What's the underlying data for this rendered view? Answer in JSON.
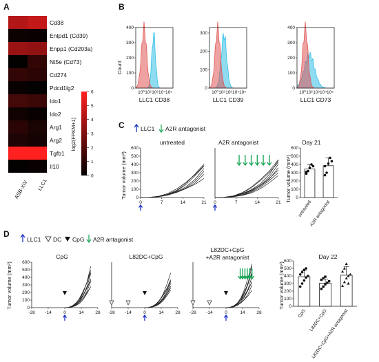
{
  "panel_letters": [
    "A",
    "B",
    "C",
    "D"
  ],
  "heatmap": {
    "genes": [
      "Cd38",
      "Entpd1 (Cd39)",
      "Enpp1 (Cd203a)",
      "Nt5e (Cd73)",
      "Cd274",
      "Pdcd1lg2",
      "Ido1",
      "Ido2",
      "Arg1",
      "Arg2",
      "Tgfb1",
      "Il10"
    ],
    "samples": [
      "ASB-XIV",
      "LLC1"
    ],
    "values": [
      [
        4.2,
        4.6
      ],
      [
        0.3,
        0.2
      ],
      [
        3.6,
        3.4
      ],
      [
        0.1,
        1.2
      ],
      [
        1.2,
        1.0
      ],
      [
        0.2,
        0.1
      ],
      [
        1.6,
        1.4
      ],
      [
        0.4,
        0.2
      ],
      [
        1.0,
        0.6
      ],
      [
        0.7,
        0.5
      ],
      [
        6.0,
        6.0
      ],
      [
        0.1,
        0.2
      ]
    ],
    "colorbar_title": "log2(FPKM+1)",
    "colorbar_ticks": [
      "0",
      "1",
      "2",
      "3",
      "4",
      "5",
      "6"
    ],
    "colors": {
      "low": "#000000",
      "high": "#ff2020"
    }
  },
  "panel_b": {
    "y_label": "Count",
    "x_tick_labels": [
      "10⁰",
      "10²",
      "10³",
      "10⁴",
      "10⁵"
    ],
    "plots": [
      {
        "xlabel": "LLC1 CD38",
        "yticks": [
          "0",
          "100",
          "200",
          "300",
          "400"
        ]
      },
      {
        "xlabel": "LLC1 CD39",
        "yticks": [
          "0",
          "100",
          "200",
          "300"
        ]
      },
      {
        "xlabel": "LLC1 CD73",
        "yticks": [
          "0",
          "100",
          "200",
          "300",
          "400"
        ]
      }
    ],
    "colors": {
      "red": "#e05555",
      "cyan": "#33bfe6"
    }
  },
  "panel_c": {
    "legend": [
      "LLC1",
      "A2R antagonist"
    ],
    "ylabel": "Tumor volume (mm³)",
    "yticks": [
      "0",
      "100",
      "200",
      "300",
      "400",
      "500",
      "600"
    ],
    "xticks": [
      "0",
      "7",
      "14",
      "21"
    ],
    "titles": [
      "untreated",
      "A2R antagonist"
    ],
    "bar_title": "Day 21",
    "bar_ylabel": "Tumor volume (mm³)",
    "bar_yticks": [
      "0",
      "100",
      "200",
      "300",
      "400",
      "500",
      "600"
    ],
    "bar_categories": [
      "untreated",
      "A2R antagonist"
    ]
  },
  "panel_d": {
    "legend": [
      "LLC1",
      "DC",
      "CpG",
      "A2R antagonist"
    ],
    "ylabel": "Tumor volume (mm³)",
    "yticks": [
      "0",
      "100",
      "200",
      "300",
      "400",
      "500",
      "600"
    ],
    "xticks": [
      "-28",
      "-14",
      "0",
      "14",
      "28"
    ],
    "titles": [
      "CpG",
      "L82DC+CpG",
      "L82DC+CpG",
      "+A2R antagonist"
    ],
    "bar_title": "Day 22",
    "bar_ylabel": "Tumor volume (mm³)",
    "bar_yticks": [
      "0",
      "100",
      "200",
      "300",
      "400",
      "500",
      "600"
    ],
    "bar_categories": [
      "CpG",
      "L82DC+CpG",
      "L82DC+CpG+A2R antagonist"
    ]
  },
  "chart_data": [
    {
      "type": "heatmap",
      "rows": [
        "Cd38",
        "Entpd1 (Cd39)",
        "Enpp1 (Cd203a)",
        "Nt5e (Cd73)",
        "Cd274",
        "Pdcd1lg2",
        "Ido1",
        "Ido2",
        "Arg1",
        "Arg2",
        "Tgfb1",
        "Il10"
      ],
      "columns": [
        "ASB-XIV",
        "LLC1"
      ],
      "values": [
        [
          4.2,
          4.6
        ],
        [
          0.3,
          0.2
        ],
        [
          3.6,
          3.4
        ],
        [
          0.1,
          1.2
        ],
        [
          1.2,
          1.0
        ],
        [
          0.2,
          0.1
        ],
        [
          1.6,
          1.4
        ],
        [
          0.4,
          0.2
        ],
        [
          1.0,
          0.6
        ],
        [
          0.7,
          0.5
        ],
        [
          6.0,
          6.0
        ],
        [
          0.1,
          0.2
        ]
      ],
      "colorbar_label": "log2(FPKM+1)",
      "range": [
        0,
        6
      ]
    },
    {
      "type": "bar",
      "title": "Day 21",
      "ylabel": "Tumor volume (mm³)",
      "ylim": [
        0,
        600
      ],
      "categories": [
        "untreated",
        "A2R antagonist"
      ],
      "values": [
        345,
        385
      ],
      "errors": [
        55,
        95
      ],
      "points": [
        [
          290,
          320,
          360,
          400,
          380,
          310
        ],
        [
          270,
          300,
          410,
          480,
          440,
          380
        ]
      ]
    },
    {
      "type": "bar",
      "title": "Day 22",
      "ylabel": "Tumor volume (mm³)",
      "ylim": [
        0,
        600
      ],
      "categories": [
        "CpG",
        "L82DC+CpG",
        "L82DC+CpG+A2R antagonist"
      ],
      "values": [
        390,
        305,
        410
      ],
      "errors": [
        85,
        55,
        115
      ],
      "points": [
        [
          260,
          300,
          340,
          380,
          400,
          420,
          450,
          480,
          500
        ],
        [
          230,
          260,
          290,
          310,
          330,
          350,
          370,
          390
        ],
        [
          270,
          320,
          370,
          400,
          420,
          460,
          500,
          560,
          300
        ]
      ]
    }
  ]
}
